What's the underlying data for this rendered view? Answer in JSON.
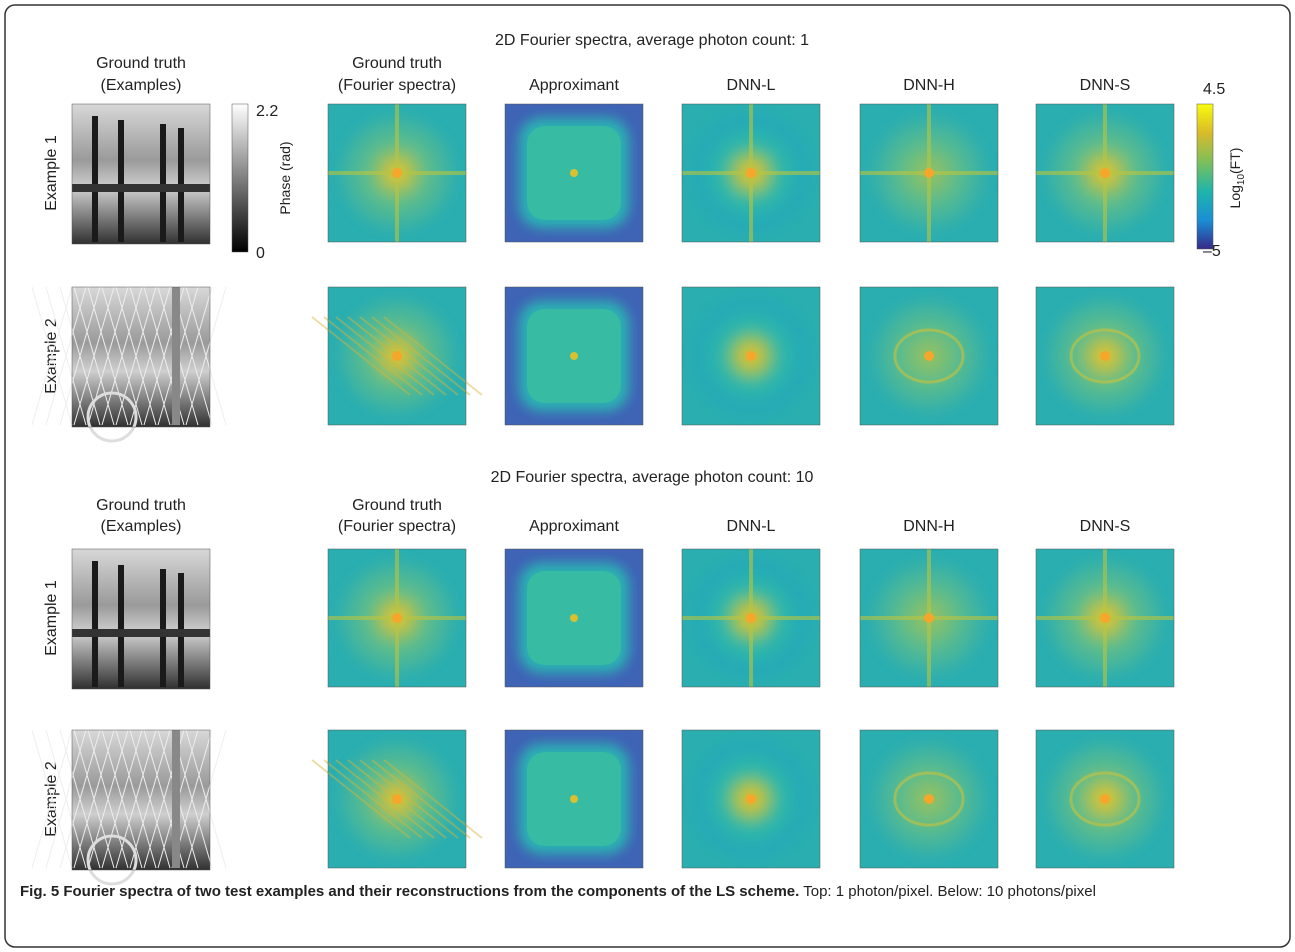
{
  "panels": [
    {
      "heading": "2D Fourier spectra, average photon count: 1",
      "example_header": [
        "Ground truth",
        "(Examples)"
      ],
      "columns": [
        [
          "Ground truth",
          "(Fourier spectra)"
        ],
        [
          "Approximant"
        ],
        [
          "DNN-L"
        ],
        [
          "DNN-H"
        ],
        [
          "DNN-S"
        ]
      ],
      "rows": [
        "Example 1",
        "Example 2"
      ]
    },
    {
      "heading": "2D Fourier spectra, average photon count: 10",
      "example_header": [
        "Ground truth",
        "(Examples)"
      ],
      "columns": [
        [
          "Ground truth",
          "(Fourier spectra)"
        ],
        [
          "Approximant"
        ],
        [
          "DNN-L"
        ],
        [
          "DNN-H"
        ],
        [
          "DNN-S"
        ]
      ],
      "rows": [
        "Example 1",
        "Example 2"
      ]
    }
  ],
  "phase_colorbar": {
    "label": "Phase (rad)",
    "max": "2.2",
    "min": "0"
  },
  "spectra_colorbar": {
    "label": [
      "Log",
      "10",
      "(FT)"
    ],
    "max": "4.5",
    "min": "–5"
  },
  "caption": {
    "bold": "Fig. 5 Fourier spectra of two test examples and their reconstructions from the components of the LS scheme.",
    "text": "Top: 1 photon/pixel. Below: 10 photons/pixel"
  }
}
